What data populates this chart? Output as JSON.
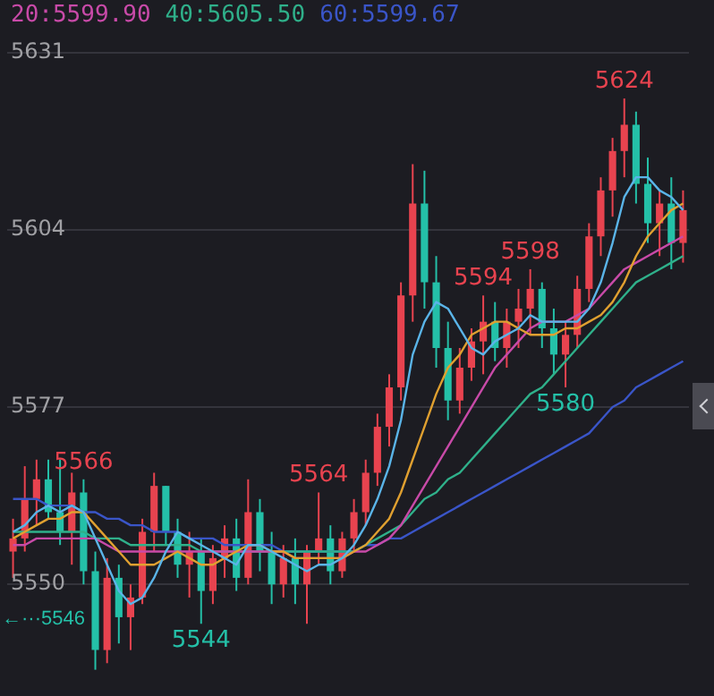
{
  "chart_data": {
    "type": "candlestick",
    "categories": [
      null,
      null,
      null,
      null,
      null,
      null,
      null,
      null,
      null,
      null,
      null,
      null,
      null,
      null,
      null,
      null,
      null,
      null,
      null,
      null,
      null,
      null,
      null,
      null,
      null,
      null,
      null,
      null,
      null,
      null,
      null,
      null,
      null,
      null,
      null,
      null,
      null,
      null,
      null,
      null,
      null,
      null,
      null,
      null,
      null,
      null,
      null,
      null,
      null,
      null,
      null,
      null,
      null,
      null,
      null,
      null,
      null,
      null
    ],
    "ohlc": [
      [
        5555,
        5560,
        5551,
        5557
      ],
      [
        5557,
        5568,
        5555,
        5563
      ],
      [
        5563,
        5569,
        5559,
        5566
      ],
      [
        5566,
        5569,
        5560,
        5561
      ],
      [
        5561,
        5569,
        5556,
        5558
      ],
      [
        5558,
        5567,
        5553,
        5564
      ],
      [
        5564,
        5566,
        5550,
        5552
      ],
      [
        5552,
        5555,
        5537,
        5540
      ],
      [
        5540,
        5554,
        5538,
        5551
      ],
      [
        5551,
        5553,
        5541,
        5545
      ],
      [
        5545,
        5550,
        5540,
        5548
      ],
      [
        5548,
        5560,
        5547,
        5558
      ],
      [
        5558,
        5567,
        5555,
        5565
      ],
      [
        5565,
        5565,
        5556,
        5558
      ],
      [
        5558,
        5560,
        5551,
        5553
      ],
      [
        5553,
        5558,
        5548,
        5555
      ],
      [
        5555,
        5557,
        5544,
        5549
      ],
      [
        5549,
        5556,
        5547,
        5554
      ],
      [
        5554,
        5559,
        5551,
        5557
      ],
      [
        5557,
        5560,
        5549,
        5551
      ],
      [
        5551,
        5566,
        5550,
        5561
      ],
      [
        5561,
        5563,
        5552,
        5555
      ],
      [
        5555,
        5558,
        5547,
        5550
      ],
      [
        5550,
        5556,
        5548,
        5554
      ],
      [
        5554,
        5557,
        5547,
        5550
      ],
      [
        5550,
        5556,
        5544,
        5555
      ],
      [
        5555,
        5564,
        5553,
        5557
      ],
      [
        5557,
        5559,
        5550,
        5552
      ],
      [
        5552,
        5558,
        5551,
        5557
      ],
      [
        5557,
        5563,
        5555,
        5561
      ],
      [
        5561,
        5569,
        5559,
        5567
      ],
      [
        5567,
        5576,
        5565,
        5574
      ],
      [
        5574,
        5582,
        5571,
        5580
      ],
      [
        5580,
        5596,
        5578,
        5594
      ],
      [
        5594,
        5614,
        5590,
        5608
      ],
      [
        5608,
        5613,
        5592,
        5596
      ],
      [
        5596,
        5600,
        5583,
        5586
      ],
      [
        5586,
        5590,
        5575,
        5578
      ],
      [
        5578,
        5586,
        5576,
        5583
      ],
      [
        5583,
        5589,
        5581,
        5587
      ],
      [
        5587,
        5594,
        5582,
        5590
      ],
      [
        5590,
        5593,
        5584,
        5586
      ],
      [
        5586,
        5592,
        5583,
        5590
      ],
      [
        5590,
        5595,
        5586,
        5592
      ],
      [
        5592,
        5598,
        5588,
        5595
      ],
      [
        5595,
        5596,
        5586,
        5589
      ],
      [
        5589,
        5592,
        5582,
        5585
      ],
      [
        5585,
        5590,
        5580,
        5588
      ],
      [
        5588,
        5597,
        5586,
        5595
      ],
      [
        5595,
        5605,
        5593,
        5603
      ],
      [
        5603,
        5612,
        5600,
        5610
      ],
      [
        5610,
        5618,
        5606,
        5616
      ],
      [
        5616,
        5624,
        5612,
        5620
      ],
      [
        5620,
        5622,
        5608,
        5611
      ],
      [
        5611,
        5615,
        5602,
        5605
      ],
      [
        5605,
        5610,
        5600,
        5608
      ],
      [
        5608,
        5612,
        5598,
        5602
      ],
      [
        5602,
        5610,
        5599,
        5607
      ]
    ],
    "colors": [
      "#e8434f",
      "#e8434f",
      "#e8434f",
      "#24c0a8",
      "#24c0a8",
      "#e8434f",
      "#24c0a8",
      "#24c0a8",
      "#e8434f",
      "#24c0a8",
      "#e8434f",
      "#e8434f",
      "#e8434f",
      "#24c0a8",
      "#24c0a8",
      "#e8434f",
      "#24c0a8",
      "#e8434f",
      "#e8434f",
      "#24c0a8",
      "#e8434f",
      "#24c0a8",
      "#24c0a8",
      "#e8434f",
      "#24c0a8",
      "#e8434f",
      "#e8434f",
      "#24c0a8",
      "#e8434f",
      "#e8434f",
      "#e8434f",
      "#e8434f",
      "#e8434f",
      "#e8434f",
      "#e8434f",
      "#24c0a8",
      "#24c0a8",
      "#24c0a8",
      "#e8434f",
      "#e8434f",
      "#e8434f",
      "#24c0a8",
      "#e8434f",
      "#e8434f",
      "#e8434f",
      "#24c0a8",
      "#24c0a8",
      "#e8434f",
      "#e8434f",
      "#e8434f",
      "#e8434f",
      "#e8434f",
      "#e8434f",
      "#24c0a8",
      "#24c0a8",
      "#e8434f",
      "#24c0a8",
      "#e8434f"
    ],
    "series": [
      {
        "type": "line",
        "color": "#5ab4e8",
        "values": [
          5558,
          5559,
          5561,
          5562,
          5561,
          5562,
          5561,
          5557,
          5553,
          5549,
          5547,
          5548,
          5551,
          5555,
          5558,
          5557,
          5556,
          5555,
          5554,
          5553,
          5556,
          5556,
          5555,
          5554,
          5553,
          5552,
          5553,
          5553,
          5554,
          5556,
          5559,
          5563,
          5568,
          5575,
          5585,
          5590,
          5593,
          5592,
          5589,
          5586,
          5585,
          5587,
          5588,
          5589,
          5591,
          5590,
          5590,
          5590,
          5590,
          5592,
          5596,
          5602,
          5609,
          5612,
          5612,
          5610,
          5609,
          5607
        ]
      },
      {
        "type": "line",
        "color": "#e0a030",
        "values": [
          5557,
          5558,
          5559,
          5560,
          5560,
          5561,
          5561,
          5559,
          5557,
          5555,
          5553,
          5553,
          5553,
          5554,
          5555,
          5554,
          5553,
          5553,
          5554,
          5555,
          5556,
          5556,
          5555,
          5555,
          5554,
          5554,
          5554,
          5554,
          5554,
          5555,
          5556,
          5558,
          5560,
          5564,
          5569,
          5574,
          5579,
          5583,
          5585,
          5588,
          5589,
          5590,
          5590,
          5589,
          5588,
          5588,
          5588,
          5589,
          5589,
          5590,
          5591,
          5593,
          5596,
          5600,
          5603,
          5605,
          5607,
          5608
        ]
      },
      {
        "type": "line",
        "name": "20:5599.90",
        "color": "#c84aa8",
        "values": [
          5556,
          5556,
          5557,
          5557,
          5557,
          5557,
          5557,
          5557,
          5556,
          5555,
          5555,
          5555,
          5555,
          5555,
          5555,
          5555,
          5555,
          5555,
          5555,
          5555,
          5555,
          5555,
          5555,
          5555,
          5554,
          5554,
          5554,
          5554,
          5554,
          5555,
          5555,
          5556,
          5557,
          5559,
          5562,
          5565,
          5568,
          5571,
          5574,
          5577,
          5580,
          5583,
          5585,
          5587,
          5589,
          5590,
          5590,
          5590,
          5591,
          5592,
          5594,
          5596,
          5598,
          5599,
          5600,
          5601,
          5602,
          5603
        ]
      },
      {
        "type": "line",
        "name": "40:5605.50",
        "color": "#2fb08a",
        "values": [
          5558,
          5558,
          5558,
          5558,
          5558,
          5558,
          5558,
          5557,
          5557,
          5557,
          5556,
          5556,
          5556,
          5556,
          5556,
          5556,
          5555,
          5555,
          5555,
          5555,
          5555,
          5555,
          5555,
          5555,
          5555,
          5555,
          5555,
          5555,
          5555,
          5555,
          5556,
          5557,
          5558,
          5559,
          5561,
          5563,
          5564,
          5566,
          5567,
          5569,
          5571,
          5573,
          5575,
          5577,
          5579,
          5580,
          5582,
          5584,
          5586,
          5588,
          5590,
          5592,
          5594,
          5596,
          5597,
          5598,
          5599,
          5600
        ]
      },
      {
        "type": "line",
        "name": "60:5599.67",
        "color": "#3a55c8",
        "values": [
          5563,
          5563,
          5563,
          5562,
          5562,
          5562,
          5561,
          5561,
          5560,
          5560,
          5559,
          5559,
          5558,
          5558,
          5558,
          5557,
          5557,
          5557,
          5556,
          5556,
          5556,
          5556,
          5556,
          5555,
          5555,
          5555,
          5555,
          5555,
          5555,
          5555,
          5556,
          5556,
          5557,
          5557,
          5558,
          5559,
          5560,
          5561,
          5562,
          5563,
          5564,
          5565,
          5566,
          5567,
          5568,
          5569,
          5570,
          5571,
          5572,
          5573,
          5575,
          5577,
          5578,
          5580,
          5581,
          5582,
          5583,
          5584
        ]
      }
    ],
    "ylim": [
      5533,
      5639
    ],
    "yticks": [
      5550,
      5577,
      5604,
      5631
    ],
    "grid": "y",
    "tick_labels": "y",
    "legend": "top left",
    "marker": "none",
    "annotations": [
      {
        "text": "5624",
        "y": 5624
      },
      {
        "text": "5598",
        "y": 5598
      },
      {
        "text": "5594",
        "y": 5594
      },
      {
        "text": "5580",
        "y": 5580
      },
      {
        "text": "5566",
        "y": 5566
      },
      {
        "text": "5564",
        "y": 5564
      },
      {
        "text": "5544",
        "y": 5544
      },
      "←···5546"
    ]
  }
}
